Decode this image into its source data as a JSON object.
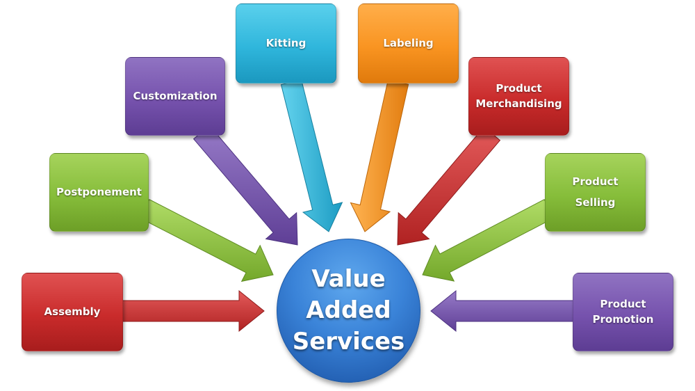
{
  "center": {
    "line1": "Value",
    "line2": "Added",
    "line3": "Services"
  },
  "services": {
    "assembly": "Assembly",
    "postponement": "Postponement",
    "customization": "Customization",
    "kitting": "Kitting",
    "labeling": "Labeling",
    "merchandising": {
      "line1": "Product",
      "line2": "Merchandising"
    },
    "selling": {
      "line1": "Product",
      "line2": "Selling"
    },
    "promotion": {
      "line1": "Product",
      "line2": "Promotion"
    }
  },
  "colors": {
    "red": "#c92b2b",
    "green": "#86bd3a",
    "purple": "#7652ad",
    "cyan": "#2fb6dc",
    "orange": "#f99421",
    "center_blue": "#3a83d8"
  }
}
